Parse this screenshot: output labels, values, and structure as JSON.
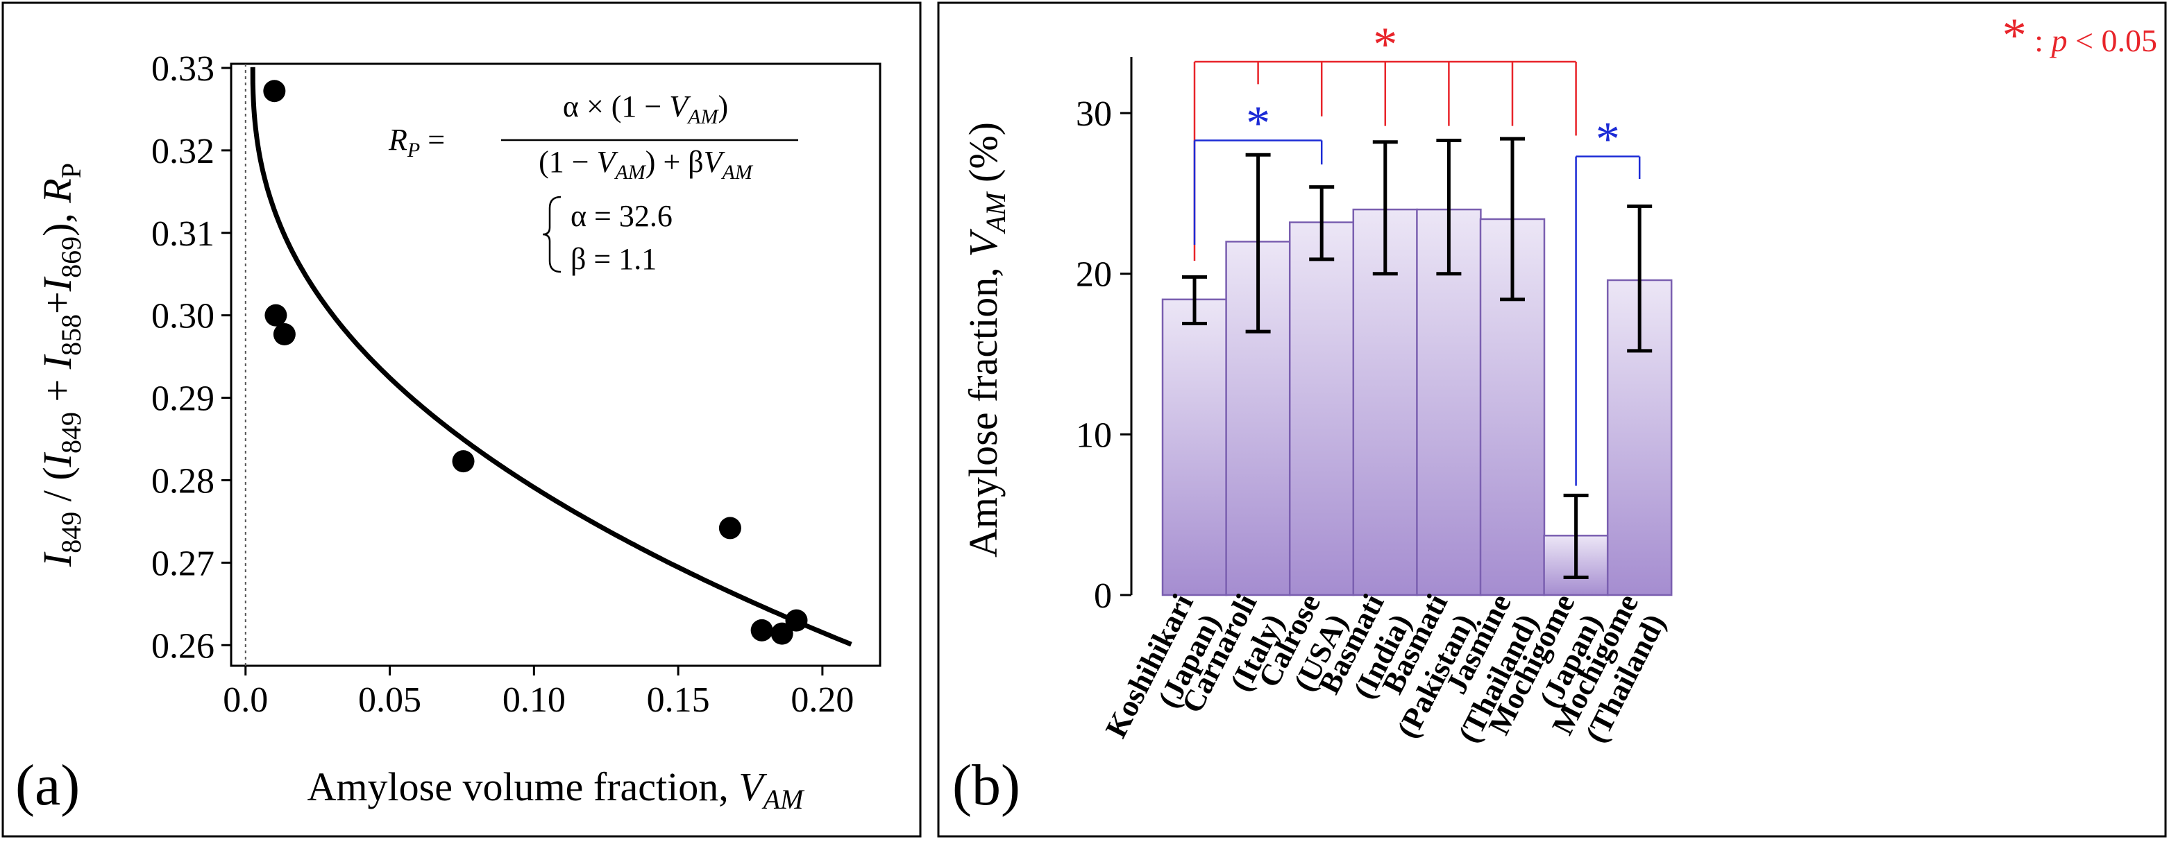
{
  "colors": {
    "bar_fill_top": "#ece6f6",
    "bar_fill_bottom": "#a58dd0",
    "bar_stroke": "#7a5fb0",
    "sig_red": "#e8242a",
    "sig_blue": "#1c2bd6",
    "axis": "#000000"
  },
  "chart_data": [
    {
      "type": "scatter",
      "panel_label": "(a)",
      "xlabel": "Amylose volume fraction, ",
      "xlabel_var": "V",
      "xlabel_sub": "AM",
      "ylabel_parts": [
        {
          "t": "I",
          "italic": true
        },
        {
          "t": "849",
          "sub": true
        },
        {
          "t": " / (",
          "italic": false
        },
        {
          "t": "I",
          "italic": true
        },
        {
          "t": "849",
          "sub": true
        },
        {
          "t": " + ",
          "italic": false
        },
        {
          "t": "I",
          "italic": true
        },
        {
          "t": "858",
          "sub": true
        },
        {
          "t": "+",
          "italic": false
        },
        {
          "t": "I",
          "italic": true
        },
        {
          "t": "869",
          "sub": true
        },
        {
          "t": "), ",
          "italic": false
        },
        {
          "t": "R",
          "italic": true
        },
        {
          "t": "P",
          "sub": true
        }
      ],
      "xlim": [
        -0.005,
        0.22
      ],
      "ylim": [
        0.2575,
        0.3305
      ],
      "xticks": [
        0.0,
        0.05,
        0.1,
        0.15,
        0.2
      ],
      "xtick_labels": [
        "0.0",
        "0.05",
        "0.10",
        "0.15",
        "0.20"
      ],
      "yticks": [
        0.26,
        0.27,
        0.28,
        0.29,
        0.3,
        0.31,
        0.32,
        0.33
      ],
      "ytick_labels": [
        "0.26",
        "0.27",
        "0.28",
        "0.29",
        "0.30",
        "0.31",
        "0.32",
        "0.33"
      ],
      "points": [
        {
          "x": 0.01,
          "y": 0.3272
        },
        {
          "x": 0.0105,
          "y": 0.3
        },
        {
          "x": 0.0135,
          "y": 0.2977
        },
        {
          "x": 0.0755,
          "y": 0.2823
        },
        {
          "x": 0.168,
          "y": 0.2742
        },
        {
          "x": 0.179,
          "y": 0.2618
        },
        {
          "x": 0.186,
          "y": 0.2614
        },
        {
          "x": 0.191,
          "y": 0.263
        }
      ],
      "fit": {
        "alpha_value": 32.6,
        "beta_value": 1.1,
        "x_start": 0.0025,
        "x_end": 0.21
      },
      "equation": {
        "lhs_var": "R",
        "lhs_sub": "P",
        "equals": " =",
        "numerator": "α × (1 − ",
        "numerator_var": "V",
        "numerator_sub": "AM",
        "numerator_close": ")",
        "denominator_a": "(1 − ",
        "denominator_var": "V",
        "denominator_sub": "AM",
        "denominator_b": ")  +  β",
        "denominator_var2": "V",
        "denominator_sub2": "AM",
        "alpha_line": "α = 32.6",
        "beta_line": "β = 1.1"
      }
    },
    {
      "type": "bar",
      "panel_label": "(b)",
      "ylabel": "Amylose fraction, ",
      "ylabel_var": "V",
      "ylabel_sub": "AM",
      "ylabel_unit": " (%)",
      "ylim": [
        0,
        33.5
      ],
      "yticks": [
        0,
        10,
        20,
        30
      ],
      "ytick_labels": [
        "0",
        "10",
        "20",
        "30"
      ],
      "categories": [
        {
          "line1": "Koshihikari",
          "line2": "(Japan)"
        },
        {
          "line1": "Carnaroli",
          "line2": "(Italy)"
        },
        {
          "line1": "Calrose",
          "line2": "(USA)"
        },
        {
          "line1": "Basmati",
          "line2": "(India)"
        },
        {
          "line1": "Basmati",
          "line2": "(Pakistan)"
        },
        {
          "line1": "Jasmine",
          "line2": "(Thailand)"
        },
        {
          "line1": "Mochigome",
          "line2": "(Japan)"
        },
        {
          "line1": "Mochigome",
          "line2": "(Thailand)"
        }
      ],
      "values": [
        18.4,
        22.0,
        23.2,
        24.0,
        24.0,
        23.4,
        3.7,
        19.6
      ],
      "err_low": [
        16.9,
        16.4,
        20.9,
        20.0,
        20.0,
        18.4,
        1.1,
        15.2
      ],
      "err_high": [
        19.8,
        27.4,
        25.4,
        28.2,
        28.3,
        28.4,
        6.2,
        24.2
      ],
      "significance": [
        {
          "color": "red",
          "level": 33.2,
          "from": 0,
          "to": 6,
          "drops": [
            0,
            1,
            2,
            3,
            4,
            5,
            6
          ],
          "star_at": 3,
          "drop_tips": [
            20.8,
            31.8,
            29.8,
            29.2,
            29.2,
            29.2,
            28.6
          ]
        },
        {
          "color": "blue",
          "level": 28.3,
          "from": 0,
          "to": 2,
          "drops": [
            0,
            2
          ],
          "star_at": 1,
          "drop_tips": [
            21.8,
            26.8
          ]
        },
        {
          "color": "blue",
          "level": 27.3,
          "from": 6,
          "to": 7,
          "drops": [
            6,
            7
          ],
          "star_at": 6.5,
          "drop_tips": [
            6.8,
            25.9
          ]
        }
      ],
      "sig_legend": {
        "star": "*",
        "sep": " : ",
        "p": "p",
        "rel": " < 0.05"
      }
    }
  ]
}
